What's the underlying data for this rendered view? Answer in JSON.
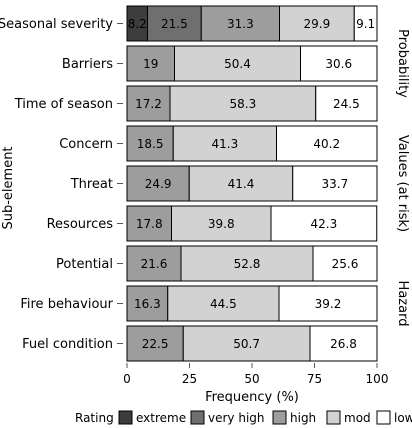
{
  "chart_data": {
    "type": "bar",
    "orientation": "horizontal",
    "stacked": true,
    "xlabel": "Frequency (%)",
    "ylabel": "Sub-element",
    "xlim": [
      0,
      100
    ],
    "xticks": [
      "0",
      "25",
      "50",
      "75",
      "100"
    ],
    "categories": [
      "Seasonal severity",
      "Barriers",
      "Time of season",
      "Concern",
      "Threat",
      "Resources",
      "Potential",
      "Fire behaviour",
      "Fuel condition"
    ],
    "legend_title": "Rating",
    "legend_position": "bottom",
    "series": [
      {
        "name": "extreme",
        "color": "#3d3d3d",
        "values": [
          8.2,
          0,
          0,
          0,
          0,
          0,
          0,
          0,
          0
        ]
      },
      {
        "name": "very high",
        "color": "#6f6f6f",
        "values": [
          21.5,
          0,
          0,
          0,
          0,
          0,
          0,
          0,
          0
        ]
      },
      {
        "name": "high",
        "color": "#9d9d9d",
        "values": [
          31.3,
          19,
          17.2,
          18.5,
          24.9,
          17.8,
          21.6,
          16.3,
          22.5
        ]
      },
      {
        "name": "mod",
        "color": "#d2d2d2",
        "values": [
          29.9,
          50.4,
          58.3,
          41.3,
          41.4,
          39.8,
          52.8,
          44.5,
          50.7
        ]
      },
      {
        "name": "low",
        "color": "#ffffff",
        "values": [
          9.1,
          30.6,
          24.5,
          40.2,
          33.7,
          42.3,
          25.6,
          39.2,
          26.8
        ]
      }
    ],
    "value_labels": [
      [
        "8.2",
        "21.5",
        "31.3",
        "29.9",
        "9.1"
      ],
      [
        "19",
        "50.4",
        "30.6"
      ],
      [
        "17.2",
        "58.3",
        "24.5"
      ],
      [
        "18.5",
        "41.3",
        "40.2"
      ],
      [
        "24.9",
        "41.4",
        "33.7"
      ],
      [
        "17.8",
        "39.8",
        "42.3"
      ],
      [
        "21.6",
        "52.8",
        "25.6"
      ],
      [
        "16.3",
        "44.5",
        "39.2"
      ],
      [
        "22.5",
        "50.7",
        "26.8"
      ]
    ],
    "facets": [
      {
        "label": "Probability",
        "categories": [
          "Seasonal severity",
          "Barriers",
          "Time of season"
        ]
      },
      {
        "label": "Values (at risk)",
        "categories": [
          "Concern",
          "Threat",
          "Resources"
        ]
      },
      {
        "label": "Hazard",
        "categories": [
          "Potential",
          "Fire behaviour",
          "Fuel condition"
        ]
      }
    ],
    "grid": false
  }
}
